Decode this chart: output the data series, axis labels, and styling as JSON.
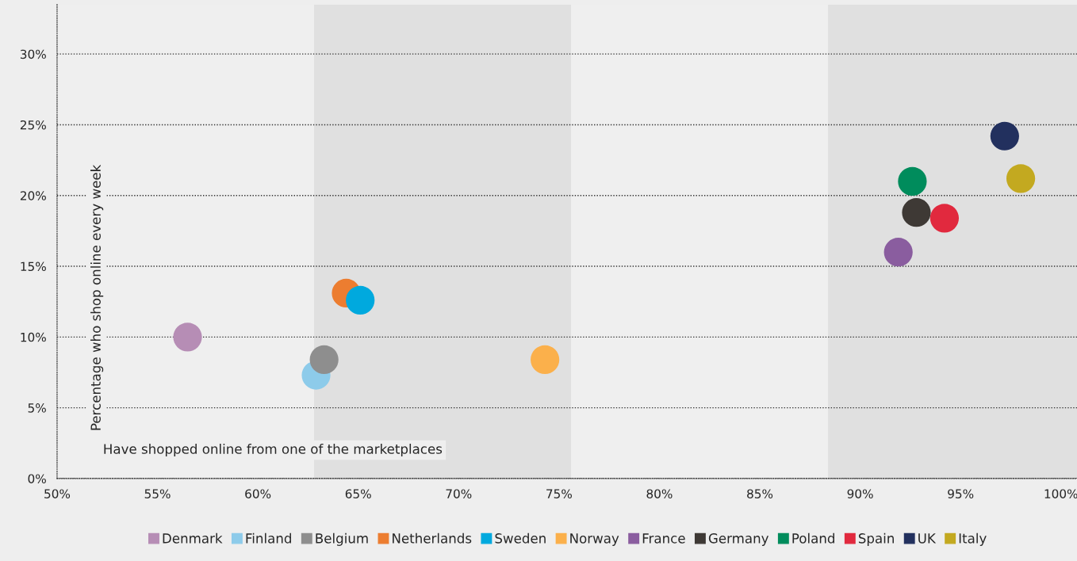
{
  "chart_data": {
    "type": "scatter",
    "xlabel": "Have shopped online from one of the marketplaces",
    "ylabel": "Percentage who shop online every week",
    "xlim": [
      50,
      100.8
    ],
    "ylim": [
      0,
      33.5
    ],
    "xticks": [
      {
        "value": 50,
        "label": "50%"
      },
      {
        "value": 55,
        "label": "55%"
      },
      {
        "value": 60,
        "label": "60%"
      },
      {
        "value": 65,
        "label": "65%"
      },
      {
        "value": 70,
        "label": "70%"
      },
      {
        "value": 75,
        "label": "75%"
      },
      {
        "value": 80,
        "label": "80%"
      },
      {
        "value": 85,
        "label": "85%"
      },
      {
        "value": 90,
        "label": "90%"
      },
      {
        "value": 95,
        "label": "95%"
      },
      {
        "value": 100,
        "label": "100%"
      }
    ],
    "yticks": [
      {
        "value": 0,
        "label": "0%"
      },
      {
        "value": 5,
        "label": "5%"
      },
      {
        "value": 10,
        "label": "10%"
      },
      {
        "value": 15,
        "label": "15%"
      },
      {
        "value": 20,
        "label": "20%"
      },
      {
        "value": 25,
        "label": "25%"
      },
      {
        "value": 30,
        "label": "30%"
      }
    ],
    "grid": "y",
    "legend": "bottom",
    "marker": "circle",
    "bands": [
      {
        "axis": "x",
        "from": 62.8,
        "to": 75.6,
        "color": "#e0e0e0"
      },
      {
        "axis": "x",
        "from": 88.4,
        "to": 100.8,
        "color": "#e0e0e0"
      }
    ],
    "series": [
      {
        "name": "Denmark",
        "color": "#b68db5",
        "x": [
          56.5
        ],
        "values": [
          10.0
        ]
      },
      {
        "name": "Finland",
        "color": "#8dcbea",
        "x": [
          62.9
        ],
        "values": [
          7.3
        ]
      },
      {
        "name": "Belgium",
        "color": "#8e8e8e",
        "x": [
          63.3
        ],
        "values": [
          8.4
        ]
      },
      {
        "name": "Netherlands",
        "color": "#ec7d30",
        "x": [
          64.4
        ],
        "values": [
          13.1
        ]
      },
      {
        "name": "Sweden",
        "color": "#00a9de",
        "x": [
          65.1
        ],
        "values": [
          12.6
        ]
      },
      {
        "name": "Norway",
        "color": "#fbb04b",
        "x": [
          74.3
        ],
        "values": [
          8.4
        ]
      },
      {
        "name": "France",
        "color": "#8a5d9f",
        "x": [
          91.9
        ],
        "values": [
          16.0
        ]
      },
      {
        "name": "Germany",
        "color": "#3e3935",
        "x": [
          92.8
        ],
        "values": [
          18.8
        ]
      },
      {
        "name": "Poland",
        "color": "#008c5c",
        "x": [
          92.6
        ],
        "values": [
          21.0
        ]
      },
      {
        "name": "Spain",
        "color": "#e1293e",
        "x": [
          94.2
        ],
        "values": [
          18.4
        ]
      },
      {
        "name": "UK",
        "color": "#22305e",
        "x": [
          97.2
        ],
        "values": [
          24.2
        ]
      },
      {
        "name": "Italy",
        "color": "#c3a920",
        "x": [
          98.0
        ],
        "values": [
          21.2
        ]
      }
    ]
  }
}
